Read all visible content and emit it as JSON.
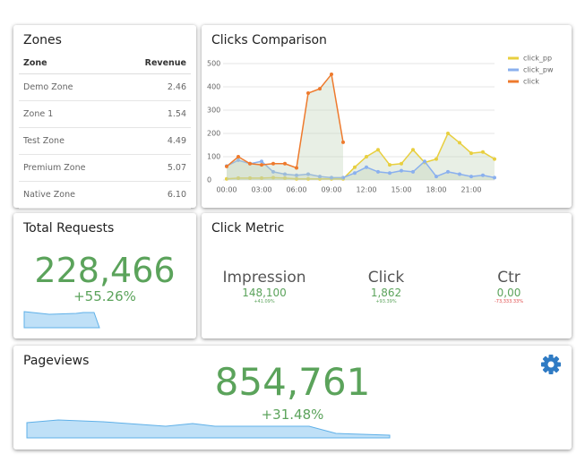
{
  "zones": {
    "title": "Zones",
    "columns": [
      "Zone",
      "Revenue"
    ],
    "rows": [
      [
        "Demo Zone",
        "2.46"
      ],
      [
        "Zone 1",
        "1.54"
      ],
      [
        "Test Zone",
        "4.49"
      ],
      [
        "Premium Zone",
        "5.07"
      ],
      [
        "Native Zone",
        "6.10"
      ]
    ]
  },
  "chart_data": {
    "type": "line",
    "title": "Clicks Comparison",
    "categories": [
      "00:00",
      null,
      null,
      "03:00",
      null,
      null,
      "06:00",
      null,
      null,
      "09:00",
      null,
      null,
      "12:00",
      null,
      null,
      "15:00",
      null,
      null,
      "18:00",
      null,
      null,
      "21:00",
      null,
      null
    ],
    "ylim": [
      0,
      500
    ],
    "yticks": [
      0,
      100,
      200,
      300,
      400,
      500
    ],
    "legend": "top-right",
    "area": true,
    "series": [
      {
        "name": "click_pp",
        "color": "#e8cf3f",
        "values": [
          5,
          8,
          8,
          8,
          10,
          8,
          5,
          5,
          5,
          5,
          5,
          55,
          100,
          130,
          65,
          70,
          130,
          75,
          90,
          200,
          160,
          115,
          120,
          90
        ]
      },
      {
        "name": "click_pw",
        "color": "#8ab0ee",
        "values": [
          60,
          85,
          70,
          80,
          35,
          25,
          20,
          25,
          15,
          10,
          10,
          30,
          55,
          35,
          30,
          40,
          35,
          80,
          15,
          35,
          25,
          15,
          20,
          10
        ]
      },
      {
        "name": "click",
        "color": "#ee7a2d",
        "values": [
          58,
          100,
          70,
          65,
          70,
          70,
          52,
          373,
          392,
          454,
          162,
          null,
          null,
          null,
          null,
          null,
          null,
          null,
          null,
          null,
          null,
          null,
          null,
          null
        ]
      }
    ]
  },
  "total_requests": {
    "title": "Total Requests",
    "value": "228,466",
    "change": "+55.26%"
  },
  "click_metric": {
    "title": "Click Metric",
    "items": [
      {
        "label": "Impression",
        "value": "148,100",
        "change": "+41.09%"
      },
      {
        "label": "Click",
        "value": "1,862",
        "change": "+93.39%"
      },
      {
        "label": "Ctr",
        "value": "0,00",
        "change": "-73,333.33%"
      }
    ]
  },
  "pageviews": {
    "title": "Pageviews",
    "value": "854,761",
    "change": "+31.48%"
  }
}
